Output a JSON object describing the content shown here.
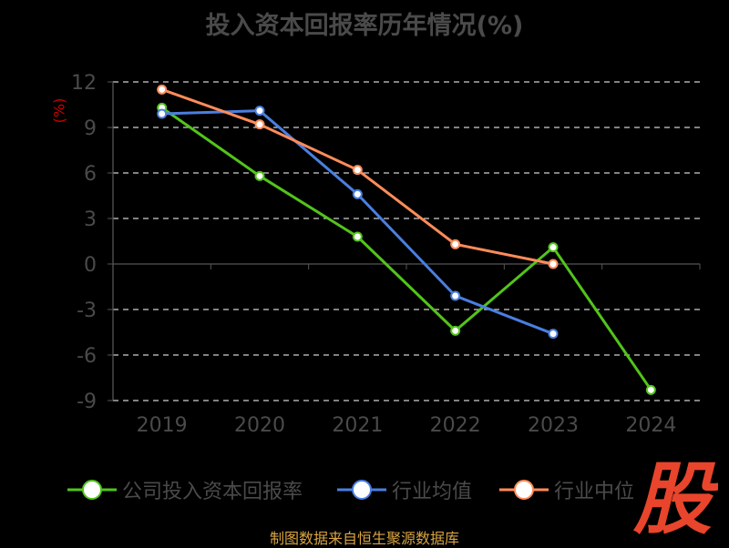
{
  "title": "投入资本回报率历年情况(%)",
  "footer": "制图数据来自恒生聚源数据库",
  "logo_text": "股",
  "chart_data": {
    "type": "line",
    "title": "投入资本回报率历年情况(%)",
    "ylabel": "(%)",
    "xlabel": "",
    "categories": [
      "2019",
      "2020",
      "2021",
      "2022",
      "2023",
      "2024"
    ],
    "ylim": [
      -9,
      12
    ],
    "yticks": [
      12,
      9,
      6,
      3,
      0,
      -3,
      -6,
      -9
    ],
    "grid": true,
    "legend_position": "bottom",
    "series": [
      {
        "name": "公司投入资本回报率",
        "color": "#52c41a",
        "values": [
          10.3,
          5.8,
          1.8,
          -4.4,
          1.1,
          -8.3
        ]
      },
      {
        "name": "行业均值",
        "color": "#4a7fe0",
        "values": [
          9.9,
          10.1,
          4.6,
          -2.1,
          -4.6,
          null
        ]
      },
      {
        "name": "行业中位",
        "color": "#ff8c5a",
        "values": [
          11.5,
          9.2,
          6.2,
          1.3,
          0.0,
          null
        ]
      }
    ]
  }
}
